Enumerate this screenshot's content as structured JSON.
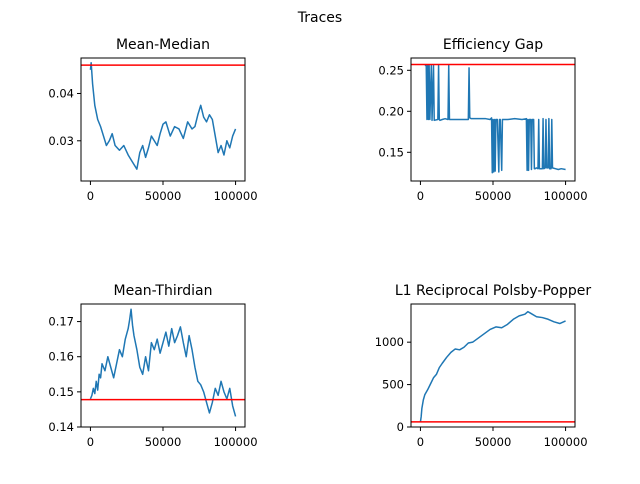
{
  "figure": {
    "suptitle": "Traces"
  },
  "chart_data": [
    {
      "type": "line",
      "title": "Mean-Median",
      "xlabel": "",
      "ylabel": "",
      "xlim": [
        -6500,
        106500
      ],
      "ylim": [
        0.0215,
        0.0475
      ],
      "xticks": [
        0,
        50000,
        100000
      ],
      "xtick_labels": [
        "0",
        "50000",
        "100000"
      ],
      "yticks": [
        0.03,
        0.04
      ],
      "ytick_labels": [
        "0.03",
        "0.04"
      ],
      "series": [
        {
          "color": "#1f77b4",
          "x": [
            0,
            500,
            1500,
            3000,
            5000,
            7000,
            9000,
            11000,
            13000,
            15000,
            17000,
            20000,
            23000,
            26000,
            29000,
            32000,
            34000,
            36000,
            38000,
            40000,
            42000,
            44000,
            46000,
            48000,
            50000,
            52000,
            55000,
            58000,
            61000,
            64000,
            67000,
            70000,
            72000,
            74000,
            76000,
            78000,
            80000,
            82000,
            84000,
            86000,
            88000,
            90000,
            92000,
            94000,
            96000,
            98000,
            100000
          ],
          "y": [
            0.045,
            0.0465,
            0.042,
            0.0375,
            0.0345,
            0.033,
            0.031,
            0.029,
            0.03,
            0.0315,
            0.029,
            0.028,
            0.029,
            0.027,
            0.0255,
            0.024,
            0.0275,
            0.029,
            0.0265,
            0.0285,
            0.031,
            0.03,
            0.029,
            0.0315,
            0.0335,
            0.034,
            0.031,
            0.033,
            0.0325,
            0.0305,
            0.034,
            0.0325,
            0.033,
            0.0355,
            0.0375,
            0.035,
            0.034,
            0.0355,
            0.0345,
            0.031,
            0.0275,
            0.029,
            0.027,
            0.03,
            0.0285,
            0.031,
            0.0325
          ]
        }
      ],
      "hline": {
        "y": 0.046,
        "color": "#ff0000"
      }
    },
    {
      "type": "line",
      "title": "Efficiency Gap",
      "xlabel": "",
      "ylabel": "",
      "xlim": [
        -6500,
        106500
      ],
      "ylim": [
        0.115,
        0.265
      ],
      "xticks": [
        0,
        50000,
        100000
      ],
      "xtick_labels": [
        "0",
        "50000",
        "100000"
      ],
      "yticks": [
        0.15,
        0.2,
        0.25
      ],
      "ytick_labels": [
        "0.15",
        "0.20",
        "0.25"
      ],
      "series": [
        {
          "color": "#1f77b4",
          "x": [
            3000,
            4000,
            4500,
            5000,
            5500,
            6000,
            6500,
            7500,
            8000,
            9000,
            9500,
            12000,
            12500,
            13000,
            13500,
            15000,
            17000,
            19000,
            19500,
            20000,
            25000,
            30000,
            33000,
            33500,
            34000,
            35000,
            40000,
            45000,
            48000,
            49000,
            49500,
            50000,
            50500,
            51000,
            51500,
            52000,
            53000,
            54000,
            54500,
            55000,
            56000,
            56500,
            57000,
            60000,
            65000,
            70000,
            73000,
            73500,
            74000,
            74500,
            75000,
            76000,
            76500,
            77000,
            78000,
            78500,
            79000,
            80000,
            81000,
            81500,
            82000,
            84000,
            84500,
            85000,
            86000,
            86500,
            87000,
            88000,
            88500,
            89000,
            90000,
            90500,
            91000,
            93000,
            95000,
            97000,
            100000
          ],
          "y": [
            0.256,
            0.256,
            0.19,
            0.256,
            0.19,
            0.256,
            0.19,
            0.256,
            0.189,
            0.256,
            0.189,
            0.19,
            0.256,
            0.19,
            0.189,
            0.19,
            0.191,
            0.19,
            0.256,
            0.19,
            0.19,
            0.19,
            0.19,
            0.253,
            0.192,
            0.191,
            0.191,
            0.191,
            0.19,
            0.192,
            0.125,
            0.19,
            0.126,
            0.19,
            0.127,
            0.19,
            0.19,
            0.126,
            0.19,
            0.19,
            0.128,
            0.19,
            0.19,
            0.19,
            0.191,
            0.19,
            0.191,
            0.128,
            0.19,
            0.128,
            0.19,
            0.19,
            0.129,
            0.19,
            0.19,
            0.13,
            0.13,
            0.131,
            0.13,
            0.19,
            0.13,
            0.13,
            0.191,
            0.13,
            0.131,
            0.19,
            0.131,
            0.131,
            0.191,
            0.13,
            0.13,
            0.19,
            0.131,
            0.13,
            0.129,
            0.13,
            0.129
          ]
        }
      ],
      "hline": {
        "y": 0.257,
        "color": "#ff0000"
      }
    },
    {
      "type": "line",
      "title": "Mean-Thirdian",
      "xlabel": "",
      "ylabel": "",
      "xlim": [
        -6500,
        106500
      ],
      "ylim": [
        0.14,
        0.175
      ],
      "xticks": [
        0,
        50000,
        100000
      ],
      "xtick_labels": [
        "0",
        "50000",
        "100000"
      ],
      "yticks": [
        0.14,
        0.15,
        0.16,
        0.17
      ],
      "ytick_labels": [
        "0.14",
        "0.15",
        "0.16",
        "0.17"
      ],
      "series": [
        {
          "color": "#1f77b4",
          "x": [
            0,
            1000,
            2000,
            3000,
            4000,
            5000,
            6000,
            7000,
            8000,
            10000,
            12000,
            14000,
            16000,
            18000,
            20000,
            22000,
            24000,
            26000,
            27000,
            28000,
            29000,
            30000,
            32000,
            34000,
            36000,
            38000,
            40000,
            42000,
            44000,
            46000,
            48000,
            50000,
            52000,
            54000,
            56000,
            58000,
            60000,
            62000,
            64000,
            66000,
            68000,
            70000,
            72000,
            74000,
            76000,
            78000,
            80000,
            82000,
            84000,
            86000,
            88000,
            90000,
            92000,
            94000,
            96000,
            98000,
            100000
          ],
          "y": [
            0.148,
            0.149,
            0.151,
            0.1495,
            0.153,
            0.1505,
            0.155,
            0.154,
            0.158,
            0.156,
            0.16,
            0.157,
            0.154,
            0.158,
            0.162,
            0.16,
            0.165,
            0.168,
            0.1705,
            0.1735,
            0.169,
            0.166,
            0.162,
            0.157,
            0.155,
            0.16,
            0.156,
            0.164,
            0.162,
            0.165,
            0.161,
            0.164,
            0.167,
            0.163,
            0.168,
            0.164,
            0.166,
            0.1685,
            0.164,
            0.16,
            0.166,
            0.162,
            0.157,
            0.153,
            0.152,
            0.15,
            0.147,
            0.144,
            0.147,
            0.151,
            0.149,
            0.153,
            0.15,
            0.148,
            0.151,
            0.146,
            0.143
          ]
        }
      ],
      "hline": {
        "y": 0.1478,
        "color": "#ff0000"
      }
    },
    {
      "type": "line",
      "title": "L1 Reciprocal Polsby-Popper",
      "xlabel": "",
      "ylabel": "",
      "xlim": [
        -6500,
        106500
      ],
      "ylim": [
        0,
        1450
      ],
      "xticks": [
        0,
        50000,
        100000
      ],
      "xtick_labels": [
        "0",
        "50000",
        "100000"
      ],
      "yticks": [
        0,
        500,
        1000
      ],
      "ytick_labels": [
        "0",
        "500",
        "1000"
      ],
      "series": [
        {
          "color": "#1f77b4",
          "x": [
            0,
            500,
            1000,
            2000,
            3000,
            5000,
            7000,
            9000,
            11000,
            13000,
            15000,
            18000,
            21000,
            24000,
            27000,
            30000,
            33000,
            36000,
            40000,
            44000,
            48000,
            52000,
            56000,
            60000,
            64000,
            68000,
            72000,
            74000,
            76000,
            80000,
            84000,
            88000,
            92000,
            96000,
            100000
          ],
          "y": [
            60,
            120,
            220,
            320,
            380,
            440,
            510,
            580,
            620,
            700,
            750,
            820,
            880,
            920,
            910,
            940,
            990,
            1000,
            1050,
            1100,
            1150,
            1180,
            1170,
            1210,
            1270,
            1310,
            1330,
            1360,
            1340,
            1300,
            1290,
            1270,
            1240,
            1220,
            1250
          ]
        }
      ],
      "hline": {
        "y": 60,
        "color": "#ff0000"
      }
    }
  ]
}
